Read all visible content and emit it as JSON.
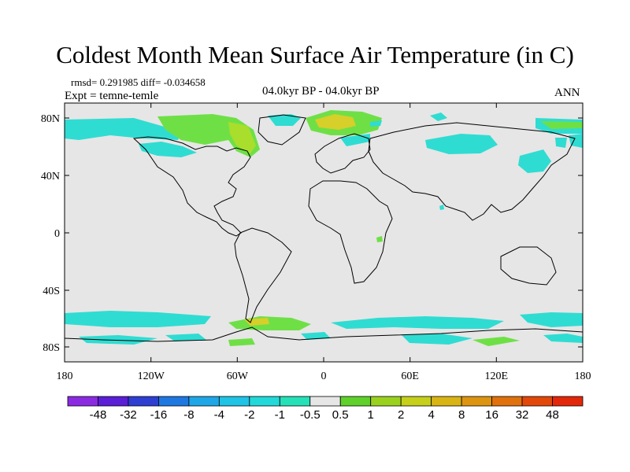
{
  "title": "Coldest Month Mean Surface Air Temperature (in C)",
  "stats": "rmsd= 0.291985 diff= -0.034658",
  "experiment": "Expt = temne-temle",
  "period": "04.0kyr BP - 04.0kyr BP",
  "season": "ANN",
  "lat_ticks": [
    "80N",
    "40N",
    "0",
    "40S",
    "80S"
  ],
  "lon_ticks": [
    "180",
    "120W",
    "60W",
    "0",
    "60E",
    "120E",
    "180"
  ],
  "colorbar": {
    "colors": [
      "#8a2be2",
      "#5a1fd6",
      "#2f3fd1",
      "#1f78e0",
      "#1fa6e6",
      "#1fc3e6",
      "#22d8d8",
      "#26e0b8",
      "#e6e6e6",
      "#5fd12a",
      "#9ad11f",
      "#c6cf1a",
      "#d8b414",
      "#dd9410",
      "#e0710d",
      "#e2480a",
      "#e3270a"
    ],
    "labels": [
      "-48",
      "-32",
      "-16",
      "-8",
      "-4",
      "-2",
      "-1",
      "-0.5",
      "0.5",
      "1",
      "2",
      "4",
      "8",
      "16",
      "32",
      "48"
    ]
  },
  "map_colors": {
    "background": "#e6e6e6",
    "cyan": "#2fdcd2",
    "green": "#6ee046",
    "lightgreen": "#a9de2c",
    "yellow": "#d7cf2a",
    "coast": "#000000"
  }
}
